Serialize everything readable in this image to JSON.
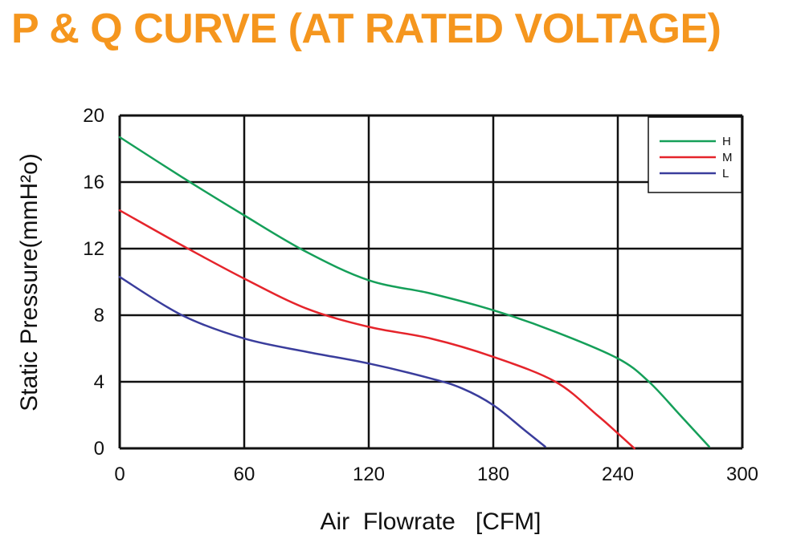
{
  "title": "P & Q CURVE (AT RATED VOLTAGE)",
  "colors": {
    "title": "#f5961e",
    "grid": "#111111",
    "H": "#159f59",
    "M": "#e5242b",
    "L": "#3a3d9c"
  },
  "chart_data": {
    "type": "line",
    "title": "P & Q CURVE (AT RATED VOLTAGE)",
    "xlabel": "Air  Flowrate   [CFM]",
    "ylabel": "Static Pressure(mmH²o)",
    "xlim": [
      0,
      300
    ],
    "ylim": [
      0,
      20
    ],
    "xticks": [
      0,
      60,
      120,
      180,
      240,
      300
    ],
    "yticks": [
      0,
      4,
      8,
      12,
      16,
      20
    ],
    "grid": true,
    "legend": "top-right",
    "series": [
      {
        "name": "H",
        "color": "#159f59",
        "points": [
          [
            0,
            18.7
          ],
          [
            30,
            16.3
          ],
          [
            60,
            14.0
          ],
          [
            90,
            11.8
          ],
          [
            120,
            10.1
          ],
          [
            150,
            9.3
          ],
          [
            180,
            8.3
          ],
          [
            210,
            7.0
          ],
          [
            240,
            5.4
          ],
          [
            255,
            4.0
          ],
          [
            270,
            2.0
          ],
          [
            284,
            0.1
          ]
        ]
      },
      {
        "name": "M",
        "color": "#e5242b",
        "points": [
          [
            0,
            14.3
          ],
          [
            30,
            12.2
          ],
          [
            60,
            10.2
          ],
          [
            90,
            8.4
          ],
          [
            120,
            7.3
          ],
          [
            150,
            6.6
          ],
          [
            180,
            5.5
          ],
          [
            210,
            4.0
          ],
          [
            230,
            2.0
          ],
          [
            240,
            0.9
          ],
          [
            248,
            0.0
          ]
        ]
      },
      {
        "name": "L",
        "color": "#3a3d9c",
        "points": [
          [
            0,
            10.3
          ],
          [
            30,
            8.0
          ],
          [
            60,
            6.6
          ],
          [
            90,
            5.8
          ],
          [
            120,
            5.1
          ],
          [
            150,
            4.2
          ],
          [
            165,
            3.6
          ],
          [
            180,
            2.6
          ],
          [
            195,
            1.1
          ],
          [
            205,
            0.1
          ]
        ]
      }
    ]
  }
}
